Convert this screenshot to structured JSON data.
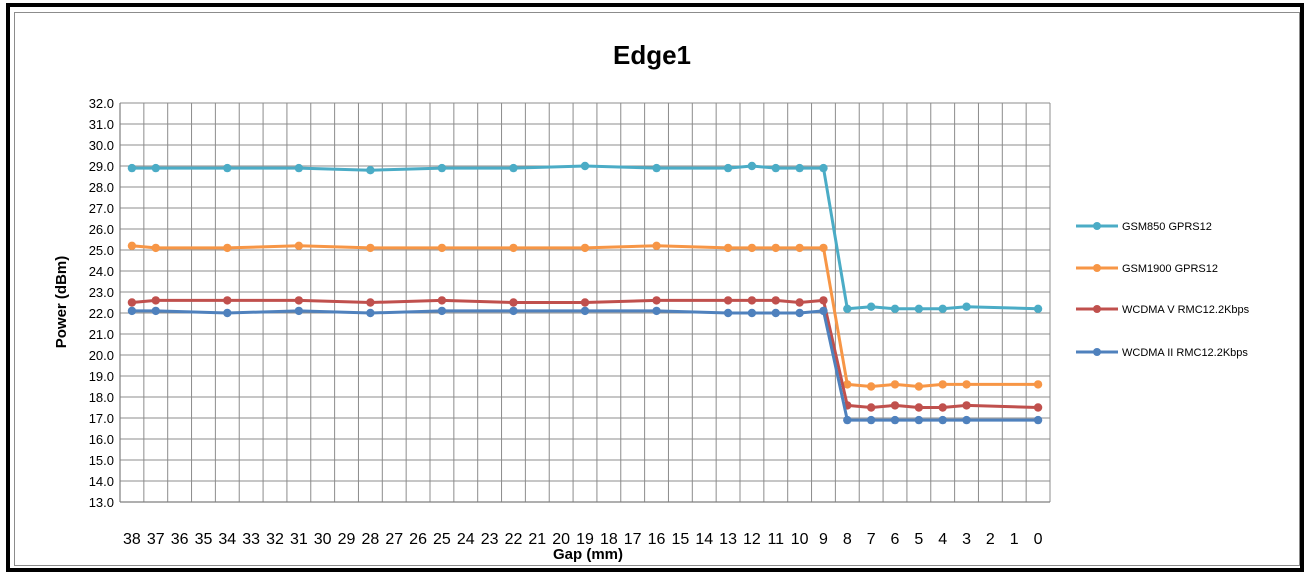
{
  "chart_data": {
    "type": "line",
    "title": "Edge1",
    "xlabel": "Gap (mm)",
    "ylabel": "Power (dBm)",
    "ylim": [
      13.0,
      32.0
    ],
    "ytick_step": 1.0,
    "grid": true,
    "legend_position": "right",
    "x": [
      38,
      37,
      36,
      35,
      34,
      33,
      32,
      31,
      30,
      29,
      28,
      27,
      26,
      25,
      24,
      23,
      22,
      21,
      20,
      19,
      18,
      17,
      16,
      15,
      14,
      13,
      12,
      11,
      10,
      9,
      8,
      7,
      6,
      5,
      4,
      3,
      2,
      1,
      0
    ],
    "series": [
      {
        "name": "GSM850 GPRS12",
        "color": "#4bacc6",
        "points": [
          [
            38,
            28.9
          ],
          [
            37,
            28.9
          ],
          [
            34,
            28.9
          ],
          [
            31,
            28.9
          ],
          [
            28,
            28.8
          ],
          [
            25,
            28.9
          ],
          [
            22,
            28.9
          ],
          [
            19,
            29.0
          ],
          [
            16,
            28.9
          ],
          [
            13,
            28.9
          ],
          [
            12,
            29.0
          ],
          [
            11,
            28.9
          ],
          [
            10,
            28.9
          ],
          [
            9,
            28.9
          ],
          [
            8,
            22.2
          ],
          [
            7,
            22.3
          ],
          [
            6,
            22.2
          ],
          [
            5,
            22.2
          ],
          [
            4,
            22.2
          ],
          [
            3,
            22.3
          ],
          [
            0,
            22.2
          ]
        ]
      },
      {
        "name": "GSM1900 GPRS12",
        "color": "#f79646",
        "points": [
          [
            38,
            25.2
          ],
          [
            37,
            25.1
          ],
          [
            34,
            25.1
          ],
          [
            31,
            25.2
          ],
          [
            28,
            25.1
          ],
          [
            25,
            25.1
          ],
          [
            22,
            25.1
          ],
          [
            19,
            25.1
          ],
          [
            16,
            25.2
          ],
          [
            13,
            25.1
          ],
          [
            12,
            25.1
          ],
          [
            11,
            25.1
          ],
          [
            10,
            25.1
          ],
          [
            9,
            25.1
          ],
          [
            8,
            18.6
          ],
          [
            7,
            18.5
          ],
          [
            6,
            18.6
          ],
          [
            5,
            18.5
          ],
          [
            4,
            18.6
          ],
          [
            3,
            18.6
          ],
          [
            0,
            18.6
          ]
        ]
      },
      {
        "name": "WCDMA V RMC12.2Kbps",
        "color": "#c0504d",
        "points": [
          [
            38,
            22.5
          ],
          [
            37,
            22.6
          ],
          [
            34,
            22.6
          ],
          [
            31,
            22.6
          ],
          [
            28,
            22.5
          ],
          [
            25,
            22.6
          ],
          [
            22,
            22.5
          ],
          [
            19,
            22.5
          ],
          [
            16,
            22.6
          ],
          [
            13,
            22.6
          ],
          [
            12,
            22.6
          ],
          [
            11,
            22.6
          ],
          [
            10,
            22.5
          ],
          [
            9,
            22.6
          ],
          [
            8,
            17.6
          ],
          [
            7,
            17.5
          ],
          [
            6,
            17.6
          ],
          [
            5,
            17.5
          ],
          [
            4,
            17.5
          ],
          [
            3,
            17.6
          ],
          [
            0,
            17.5
          ]
        ]
      },
      {
        "name": "WCDMA II RMC12.2Kbps",
        "color": "#4f81bd",
        "points": [
          [
            38,
            22.1
          ],
          [
            37,
            22.1
          ],
          [
            34,
            22.0
          ],
          [
            31,
            22.1
          ],
          [
            28,
            22.0
          ],
          [
            25,
            22.1
          ],
          [
            22,
            22.1
          ],
          [
            19,
            22.1
          ],
          [
            16,
            22.1
          ],
          [
            13,
            22.0
          ],
          [
            12,
            22.0
          ],
          [
            11,
            22.0
          ],
          [
            10,
            22.0
          ],
          [
            9,
            22.1
          ],
          [
            8,
            16.9
          ],
          [
            7,
            16.9
          ],
          [
            6,
            16.9
          ],
          [
            5,
            16.9
          ],
          [
            4,
            16.9
          ],
          [
            3,
            16.9
          ],
          [
            0,
            16.9
          ]
        ]
      }
    ]
  }
}
